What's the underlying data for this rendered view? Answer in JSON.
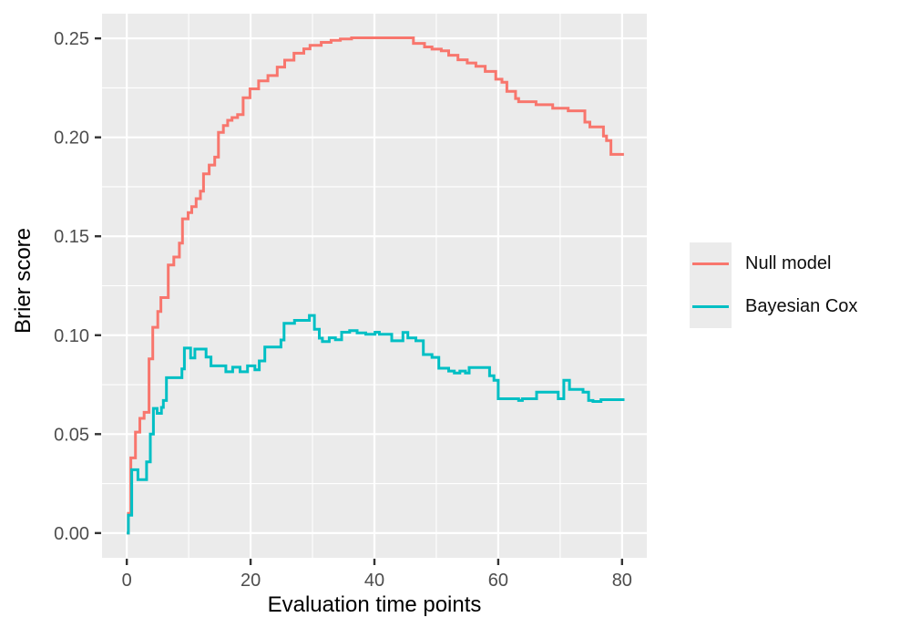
{
  "chart_data": {
    "type": "line",
    "step": true,
    "title": "",
    "xlabel": "Evaluation time points",
    "ylabel": "Brier score",
    "xlim": [
      0,
      80
    ],
    "ylim": [
      0,
      0.25
    ],
    "expand_frac": 0.05,
    "grid": true,
    "panel_bg": "#EBEBEB",
    "grid_color": "#FFFFFF",
    "tick_color": "#333333",
    "tick_label_color": "#4D4D4D",
    "x_ticks": {
      "values": [
        0,
        20,
        40,
        60,
        80
      ],
      "labels": [
        "0",
        "20",
        "40",
        "60",
        "80"
      ]
    },
    "y_ticks": {
      "values": [
        0,
        0.05,
        0.1,
        0.15,
        0.2,
        0.25
      ],
      "labels": [
        "0.00",
        "0.05",
        "0.10",
        "0.15",
        "0.20",
        "0.25"
      ]
    },
    "x_minor": [
      10,
      30,
      50,
      70
    ],
    "y_minor": [
      0.025,
      0.075,
      0.125,
      0.175,
      0.225
    ],
    "legend": {
      "position": "right",
      "entries": [
        "Null model",
        "Bayesian Cox"
      ]
    },
    "series": [
      {
        "name": "Null model",
        "color": "#F8766D",
        "step_points": [
          [
            0,
            0
          ],
          [
            0.25,
            0.01
          ],
          [
            0.65,
            0.038
          ],
          [
            1.4,
            0.051
          ],
          [
            2.1,
            0.058
          ],
          [
            2.8,
            0.061
          ],
          [
            3.6,
            0.088
          ],
          [
            4.2,
            0.104
          ],
          [
            5.0,
            0.112
          ],
          [
            5.5,
            0.119
          ],
          [
            6.7,
            0.1355
          ],
          [
            7.6,
            0.1395
          ],
          [
            8.5,
            0.1465
          ],
          [
            9.0,
            0.1588
          ],
          [
            9.9,
            0.162
          ],
          [
            10.5,
            0.165
          ],
          [
            11.2,
            0.169
          ],
          [
            11.9,
            0.1728
          ],
          [
            12.4,
            0.1815
          ],
          [
            13.3,
            0.186
          ],
          [
            14.2,
            0.19
          ],
          [
            14.8,
            0.2025
          ],
          [
            15.6,
            0.206
          ],
          [
            16.3,
            0.2086
          ],
          [
            17.0,
            0.21
          ],
          [
            17.9,
            0.2115
          ],
          [
            18.8,
            0.22
          ],
          [
            19.9,
            0.2245
          ],
          [
            21.3,
            0.2285
          ],
          [
            22.8,
            0.2312
          ],
          [
            24.3,
            0.2355
          ],
          [
            25.5,
            0.239
          ],
          [
            27.0,
            0.2425
          ],
          [
            28.6,
            0.2447
          ],
          [
            29.6,
            0.2465
          ],
          [
            31.4,
            0.248
          ],
          [
            33.0,
            0.249
          ],
          [
            34.5,
            0.2497
          ],
          [
            36.3,
            0.2503
          ],
          [
            46.3,
            0.2475
          ],
          [
            48.1,
            0.2457
          ],
          [
            49.3,
            0.2446
          ],
          [
            50.8,
            0.2437
          ],
          [
            52.0,
            0.2415
          ],
          [
            53.5,
            0.2392
          ],
          [
            55.0,
            0.2376
          ],
          [
            56.4,
            0.2359
          ],
          [
            57.9,
            0.2333
          ],
          [
            59.6,
            0.2294
          ],
          [
            60.6,
            0.2278
          ],
          [
            61.4,
            0.2232
          ],
          [
            62.8,
            0.2196
          ],
          [
            63.3,
            0.218
          ],
          [
            66.1,
            0.2165
          ],
          [
            68.8,
            0.2147
          ],
          [
            71.3,
            0.2134
          ],
          [
            74.0,
            0.2077
          ],
          [
            74.8,
            0.2053
          ],
          [
            77.0,
            0.2007
          ],
          [
            77.5,
            0.1984
          ],
          [
            78.2,
            0.1914
          ],
          [
            80.3,
            0.1914
          ]
        ]
      },
      {
        "name": "Bayesian Cox",
        "color": "#00BFC4",
        "step_points": [
          [
            0,
            0
          ],
          [
            0.25,
            0.009
          ],
          [
            0.8,
            0.032
          ],
          [
            1.8,
            0.027
          ],
          [
            3.2,
            0.036
          ],
          [
            3.8,
            0.05
          ],
          [
            4.3,
            0.063
          ],
          [
            4.9,
            0.0605
          ],
          [
            5.6,
            0.0635
          ],
          [
            5.9,
            0.067
          ],
          [
            6.4,
            0.0785
          ],
          [
            8.9,
            0.083
          ],
          [
            9.3,
            0.0935
          ],
          [
            10.3,
            0.0885
          ],
          [
            11.0,
            0.093
          ],
          [
            12.8,
            0.089
          ],
          [
            13.6,
            0.0845
          ],
          [
            16.0,
            0.0815
          ],
          [
            17.1,
            0.0838
          ],
          [
            18.3,
            0.0815
          ],
          [
            19.5,
            0.0845
          ],
          [
            20.7,
            0.0825
          ],
          [
            21.4,
            0.087
          ],
          [
            22.3,
            0.094
          ],
          [
            24.9,
            0.0976
          ],
          [
            25.4,
            0.106
          ],
          [
            27.1,
            0.1075
          ],
          [
            29.5,
            0.11
          ],
          [
            30.3,
            0.103
          ],
          [
            31.1,
            0.0985
          ],
          [
            31.6,
            0.0968
          ],
          [
            32.7,
            0.0987
          ],
          [
            33.7,
            0.0977
          ],
          [
            34.7,
            0.1015
          ],
          [
            36.0,
            0.1023
          ],
          [
            37.2,
            0.1012
          ],
          [
            38.6,
            0.1005
          ],
          [
            40.1,
            0.1015
          ],
          [
            40.8,
            0.1005
          ],
          [
            42.8,
            0.0972
          ],
          [
            44.6,
            0.1014
          ],
          [
            45.4,
            0.0986
          ],
          [
            46.7,
            0.0972
          ],
          [
            47.9,
            0.0902
          ],
          [
            49.3,
            0.0888
          ],
          [
            50.4,
            0.0833
          ],
          [
            52.0,
            0.0819
          ],
          [
            52.9,
            0.0809
          ],
          [
            53.8,
            0.0819
          ],
          [
            54.7,
            0.0809
          ],
          [
            55.3,
            0.0837
          ],
          [
            58.6,
            0.0795
          ],
          [
            59.3,
            0.0772
          ],
          [
            60.0,
            0.0679
          ],
          [
            63.3,
            0.067
          ],
          [
            63.9,
            0.0679
          ],
          [
            66.2,
            0.0712
          ],
          [
            69.7,
            0.0679
          ],
          [
            70.6,
            0.0772
          ],
          [
            71.5,
            0.0726
          ],
          [
            73.7,
            0.0712
          ],
          [
            74.6,
            0.067
          ],
          [
            75.3,
            0.0665
          ],
          [
            76.6,
            0.0674
          ],
          [
            80.4,
            0.0674
          ]
        ]
      }
    ]
  }
}
